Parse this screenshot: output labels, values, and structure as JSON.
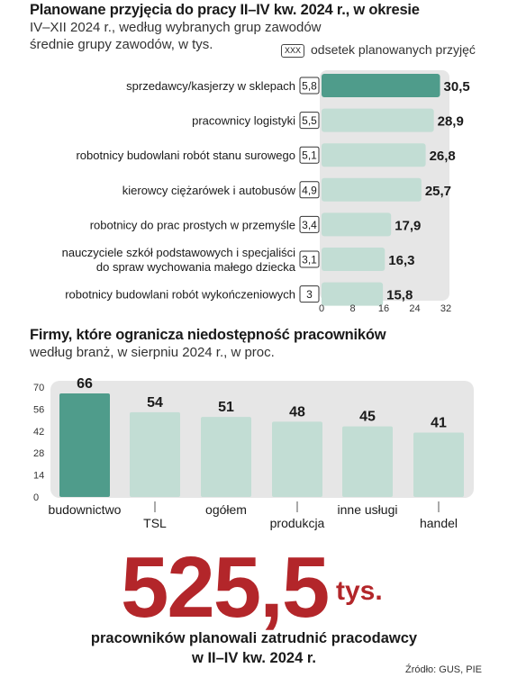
{
  "top_title": "Planowane przyjęcia do pracy II–IV kw. 2024 r., w okresie",
  "top_subtitle_1": "IV–XII 2024 r., według wybranych grup zawodów",
  "top_subtitle_2": "średnie grupy zawodów, w tys.",
  "legend_box": "XXX",
  "legend_text": "odsetek planowanych przyjęć",
  "bottom_title": "Firmy, które ogranicza niedostępność pracowników",
  "bottom_subtitle": "według branż, w sierpniu 2024 r., w  proc.",
  "big_number": "525,5",
  "big_unit": "tys.",
  "caption_1": "pracowników planowali zatrudnić pracodawcy",
  "caption_2": "w II–IV kw. 2024 r.",
  "source": "Źródło: GUS, PIE",
  "colors": {
    "highlight": "#4f9c8b",
    "bar": "#c2ddd4",
    "panel": "#e6e6e6",
    "big_number": "#b3262a"
  },
  "chart_data": [
    {
      "type": "bar",
      "orientation": "horizontal",
      "categories": [
        "sprzedawcy/kasjerzy w sklepach",
        "pracownicy logistyki",
        "robotnicy budowlani robót stanu surowego",
        "kierowcy ciężarówek i autobusów",
        "robotnicy do prac prostych w przemyśle",
        [
          "nauczyciele szkół podstawowych i specjaliści",
          "do spraw wychowania małego dziecka"
        ],
        "robotnicy budowlani robót wykończeniowych"
      ],
      "values": [
        30.5,
        28.9,
        26.8,
        25.7,
        17.9,
        16.3,
        15.8
      ],
      "value_labels": [
        "30,5",
        "28,9",
        "26,8",
        "25,7",
        "17,9",
        "16,3",
        "15,8"
      ],
      "shares": [
        "5,8",
        "5,5",
        "5,1",
        "4,9",
        "3,4",
        "3,1",
        "3"
      ],
      "highlight_index": 0,
      "xlim": [
        0,
        32
      ],
      "xticks": [
        "0",
        "8",
        "16",
        "24",
        "32"
      ],
      "grid": false
    },
    {
      "type": "bar",
      "orientation": "vertical",
      "categories": [
        "budownictwo",
        "TSL",
        "ogółem",
        "produkcja",
        "inne usługi",
        "handel"
      ],
      "values": [
        66,
        54,
        51,
        48,
        45,
        41
      ],
      "highlight_index": 0,
      "ylim": [
        0,
        70
      ],
      "yticks": [
        "0",
        "14",
        "28",
        "42",
        "56",
        "70"
      ],
      "grid": false
    }
  ]
}
